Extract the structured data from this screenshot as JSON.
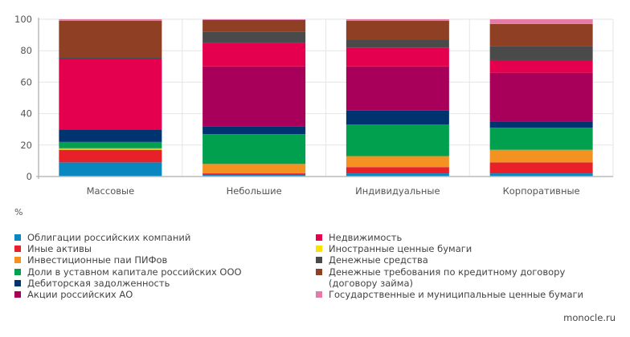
{
  "chart_data": {
    "type": "bar",
    "stacked": true,
    "categories": [
      "Массовые",
      "Небольшие",
      "Индивидуальные",
      "Корпоративные"
    ],
    "ylabel": "%",
    "ylim": [
      0,
      100
    ],
    "yticks": [
      "0",
      "20",
      "40",
      "60",
      "80",
      "100"
    ],
    "grid": true,
    "legend_position": "bottom",
    "series": [
      {
        "name": "Облигации российских компаний",
        "color": "#0a87bf",
        "values": [
          9,
          1,
          2,
          2
        ]
      },
      {
        "name": "Иные активы",
        "color": "#e8202a",
        "values": [
          8,
          1,
          4,
          7
        ]
      },
      {
        "name": "Иностранные ценные бумаги",
        "color": "#ffe100",
        "values": [
          0.5,
          0,
          0,
          0
        ]
      },
      {
        "name": "Инвестиционные паи ПИФов",
        "color": "#f39220",
        "values": [
          0.5,
          6,
          7,
          8
        ]
      },
      {
        "name": "Доли в уставном капитале российских ООО",
        "color": "#00a04e",
        "values": [
          4,
          19,
          20,
          14
        ]
      },
      {
        "name": "Дебиторская задолженность",
        "color": "#003470",
        "values": [
          8,
          5,
          9,
          4
        ]
      },
      {
        "name": "Акции российских АО",
        "color": "#a8005a",
        "values": [
          0,
          38,
          28,
          31
        ]
      },
      {
        "name": "Недвижимость",
        "color": "#e4004f",
        "values": [
          45,
          15,
          12,
          8
        ]
      },
      {
        "name": "Денежные средства",
        "color": "#4a4a4a",
        "values": [
          0.5,
          7,
          5,
          9
        ]
      },
      {
        "name": "Денежные требования по кредитному договору (договору займа)",
        "color": "#8e3f24",
        "values": [
          23.5,
          7.5,
          12,
          14
        ]
      },
      {
        "name": "Государственные и муниципальные ценные бумаги",
        "color": "#e57ba8",
        "values": [
          1,
          0.5,
          1,
          3
        ]
      }
    ]
  },
  "legend": {
    "left": [
      {
        "label": "Облигации российских компаний",
        "color": "#0a87bf"
      },
      {
        "label": "Иные активы",
        "color": "#e8202a"
      },
      {
        "label": "Инвестиционные паи ПИФов",
        "color": "#f39220"
      },
      {
        "label": "Доли в уставном капитале российских ООО",
        "color": "#00a04e"
      },
      {
        "label": "Дебиторская задолженность",
        "color": "#003470"
      },
      {
        "label": "Акции российских АО",
        "color": "#a8005a"
      }
    ],
    "right": [
      {
        "label": "Недвижимость",
        "color": "#e4004f"
      },
      {
        "label": "Иностранные ценные бумаги",
        "color": "#ffe100"
      },
      {
        "label": "Денежные средства",
        "color": "#4a4a4a"
      },
      {
        "label": "Денежные требования по кредитному договору",
        "label2": "(договору займа)",
        "color": "#8e3f24"
      },
      {
        "label": "Государственные и муниципальные ценные бумаги",
        "color": "#e57ba8"
      }
    ]
  },
  "source": "monocle.ru"
}
